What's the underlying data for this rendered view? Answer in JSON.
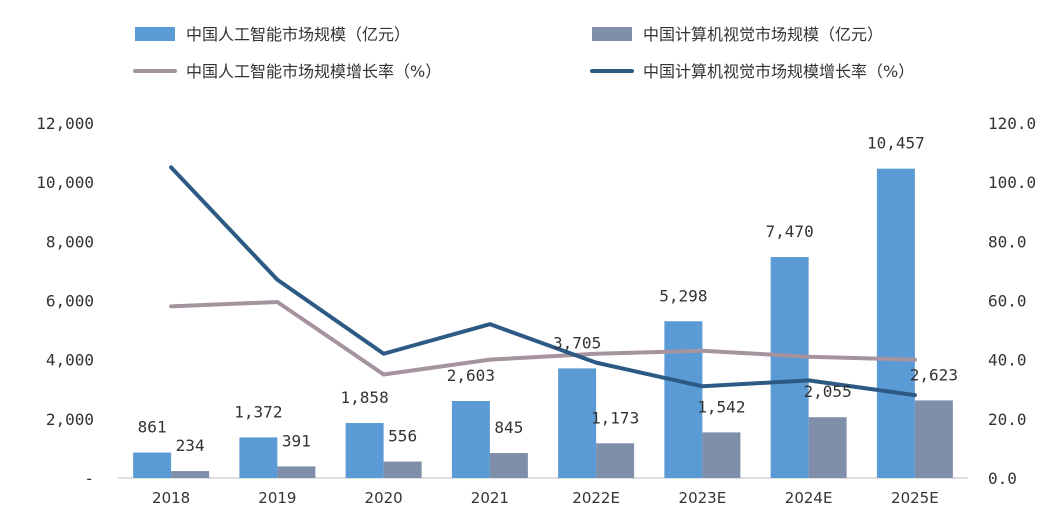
{
  "chart_data": {
    "type": "bar",
    "categories": [
      "2018",
      "2019",
      "2020",
      "2021",
      "2022E",
      "2023E",
      "2024E",
      "2025E"
    ],
    "series": [
      {
        "name": "中国人工智能市场规模（亿元）",
        "kind": "bar",
        "axis": "left",
        "color": "#5b9bd5",
        "values": [
          861,
          1372,
          1858,
          2603,
          3705,
          5298,
          7470,
          10457
        ],
        "labels": [
          "861",
          "1,372",
          "1,858",
          "2,603",
          "3,705",
          "5,298",
          "7,470",
          "10,457"
        ]
      },
      {
        "name": "中国计算机视觉市场规模（亿元）",
        "kind": "bar",
        "axis": "left",
        "color": "#7f8faa",
        "values": [
          234,
          391,
          556,
          845,
          1173,
          1542,
          2055,
          2623
        ],
        "labels": [
          "234",
          "391",
          "556",
          "845",
          "1,173",
          "1,542",
          "2,055",
          "2,623"
        ]
      },
      {
        "name": "中国人工智能市场规模增长率（%）",
        "kind": "line",
        "axis": "right",
        "color": "#a5939f",
        "values": [
          58.0,
          59.5,
          35.0,
          40.0,
          42.0,
          43.0,
          41.0,
          40.0
        ]
      },
      {
        "name": "中国计算机视觉市场规模增长率（%）",
        "kind": "line",
        "axis": "right",
        "color": "#2c5a85",
        "values": [
          105.0,
          67.0,
          42.0,
          52.0,
          39.0,
          31.0,
          33.0,
          28.0
        ]
      }
    ],
    "y_left": {
      "ylim": [
        0,
        12000
      ],
      "ticks": [
        0,
        2000,
        4000,
        6000,
        8000,
        10000,
        12000
      ],
      "tick_labels": [
        "-",
        "2,000",
        "4,000",
        "6,000",
        "8,000",
        "10,000",
        "12,000"
      ]
    },
    "y_right": {
      "ylim": [
        0,
        120
      ],
      "ticks": [
        0,
        20,
        40,
        60,
        80,
        100,
        120
      ],
      "tick_labels": [
        "0.0",
        "20.0",
        "40.0",
        "60.0",
        "80.0",
        "100.0",
        "120.0"
      ]
    },
    "grid": false,
    "legend_position": "top"
  }
}
